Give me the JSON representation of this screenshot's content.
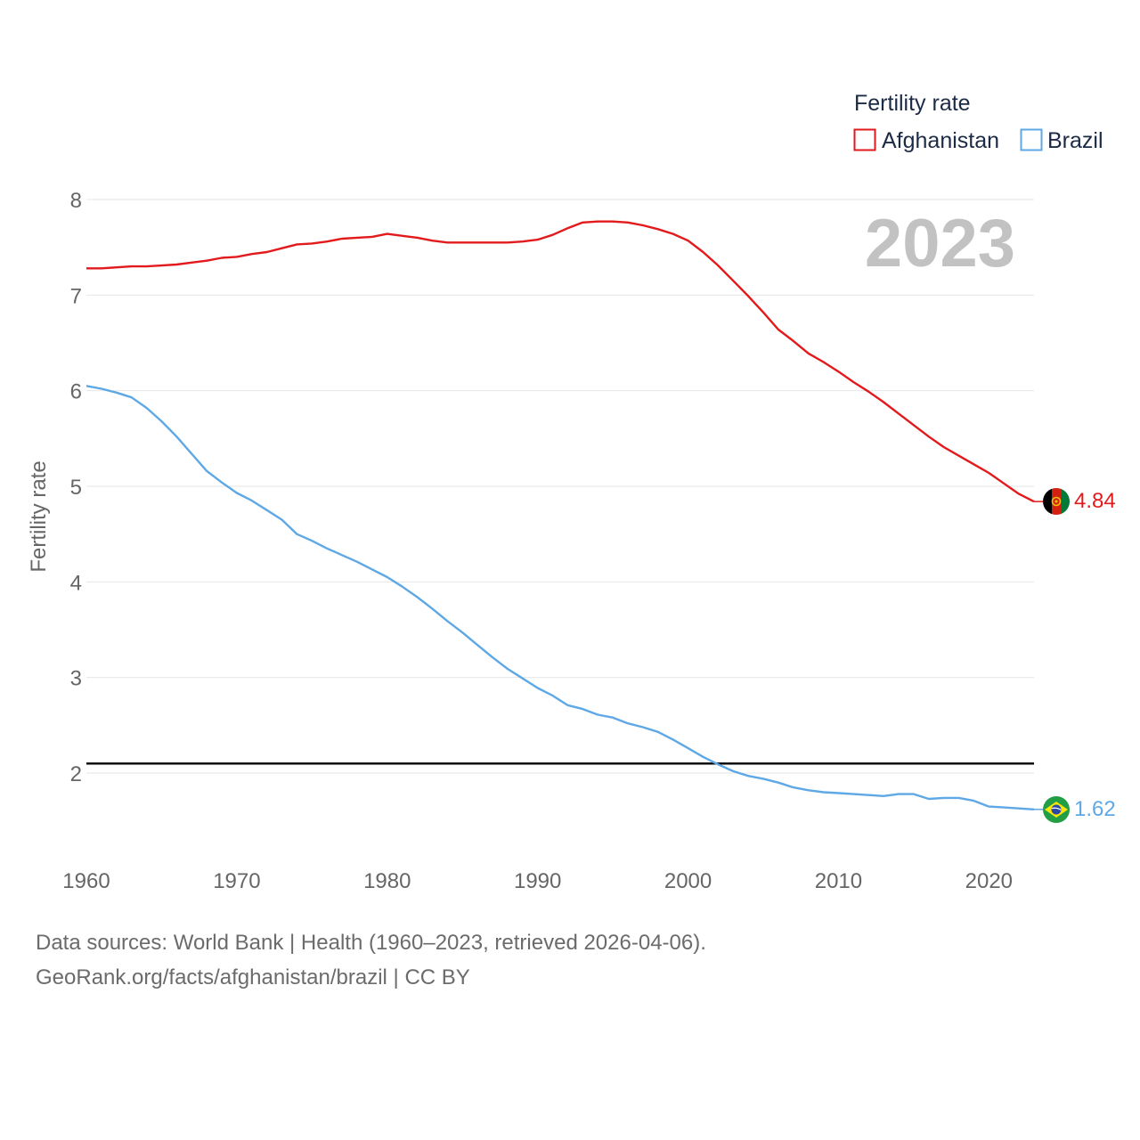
{
  "chart_data": {
    "type": "line",
    "ylabel": "Fertility rate",
    "legend_title": "Fertility rate",
    "legend_position": "top-right",
    "year_label": "2023",
    "xlim": [
      1960,
      2023
    ],
    "ylim": [
      1.2,
      8.2
    ],
    "x_ticks": [
      1960,
      1970,
      1980,
      1990,
      2000,
      2010,
      2020
    ],
    "y_ticks": [
      2,
      3,
      4,
      5,
      6,
      7,
      8
    ],
    "grid": true,
    "reference_line": 2.1,
    "series": [
      {
        "name": "Afghanistan",
        "color": "#e31a1c",
        "end_label": "4.84",
        "flag_icon": "afghanistan-flag-icon",
        "x": [
          1960,
          1961,
          1962,
          1963,
          1964,
          1965,
          1966,
          1967,
          1968,
          1969,
          1970,
          1971,
          1972,
          1973,
          1974,
          1975,
          1976,
          1977,
          1978,
          1979,
          1980,
          1981,
          1982,
          1983,
          1984,
          1985,
          1986,
          1987,
          1988,
          1989,
          1990,
          1991,
          1992,
          1993,
          1994,
          1995,
          1996,
          1997,
          1998,
          1999,
          2000,
          2001,
          2002,
          2003,
          2004,
          2005,
          2006,
          2007,
          2008,
          2009,
          2010,
          2011,
          2012,
          2013,
          2014,
          2015,
          2016,
          2017,
          2018,
          2019,
          2020,
          2021,
          2022,
          2023
        ],
        "values": [
          7.28,
          7.28,
          7.29,
          7.3,
          7.3,
          7.31,
          7.32,
          7.34,
          7.36,
          7.39,
          7.4,
          7.43,
          7.45,
          7.49,
          7.53,
          7.54,
          7.56,
          7.59,
          7.6,
          7.61,
          7.64,
          7.62,
          7.6,
          7.57,
          7.55,
          7.55,
          7.55,
          7.55,
          7.55,
          7.56,
          7.58,
          7.63,
          7.7,
          7.76,
          7.77,
          7.77,
          7.76,
          7.73,
          7.69,
          7.64,
          7.57,
          7.45,
          7.31,
          7.15,
          6.99,
          6.82,
          6.64,
          6.52,
          6.39,
          6.3,
          6.2,
          6.09,
          5.99,
          5.88,
          5.76,
          5.64,
          5.52,
          5.41,
          5.32,
          5.23,
          5.14,
          5.03,
          4.92,
          4.84
        ]
      },
      {
        "name": "Brazil",
        "color": "#5ea8e6",
        "end_label": "1.62",
        "flag_icon": "brazil-flag-icon",
        "x": [
          1960,
          1961,
          1962,
          1963,
          1964,
          1965,
          1966,
          1967,
          1968,
          1969,
          1970,
          1971,
          1972,
          1973,
          1974,
          1975,
          1976,
          1977,
          1978,
          1979,
          1980,
          1981,
          1982,
          1983,
          1984,
          1985,
          1986,
          1987,
          1988,
          1989,
          1990,
          1991,
          1992,
          1993,
          1994,
          1995,
          1996,
          1997,
          1998,
          1999,
          2000,
          2001,
          2002,
          2003,
          2004,
          2005,
          2006,
          2007,
          2008,
          2009,
          2010,
          2011,
          2012,
          2013,
          2014,
          2015,
          2016,
          2017,
          2018,
          2019,
          2020,
          2021,
          2022,
          2023
        ],
        "values": [
          6.05,
          6.02,
          5.98,
          5.93,
          5.82,
          5.68,
          5.52,
          5.34,
          5.16,
          5.04,
          4.93,
          4.85,
          4.75,
          4.65,
          4.5,
          4.43,
          4.35,
          4.28,
          4.21,
          4.13,
          4.05,
          3.95,
          3.84,
          3.72,
          3.59,
          3.47,
          3.34,
          3.21,
          3.09,
          2.99,
          2.89,
          2.81,
          2.71,
          2.67,
          2.61,
          2.58,
          2.52,
          2.48,
          2.43,
          2.35,
          2.26,
          2.17,
          2.09,
          2.02,
          1.97,
          1.94,
          1.9,
          1.85,
          1.82,
          1.8,
          1.79,
          1.78,
          1.77,
          1.76,
          1.78,
          1.78,
          1.73,
          1.74,
          1.74,
          1.71,
          1.65,
          1.64,
          1.63,
          1.62
        ]
      }
    ]
  },
  "footer": {
    "source_line": "Data sources: World Bank | Health (1960–2023, retrieved 2026-04-06).",
    "url_line": "GeoRank.org/facts/afghanistan/brazil | CC BY"
  }
}
